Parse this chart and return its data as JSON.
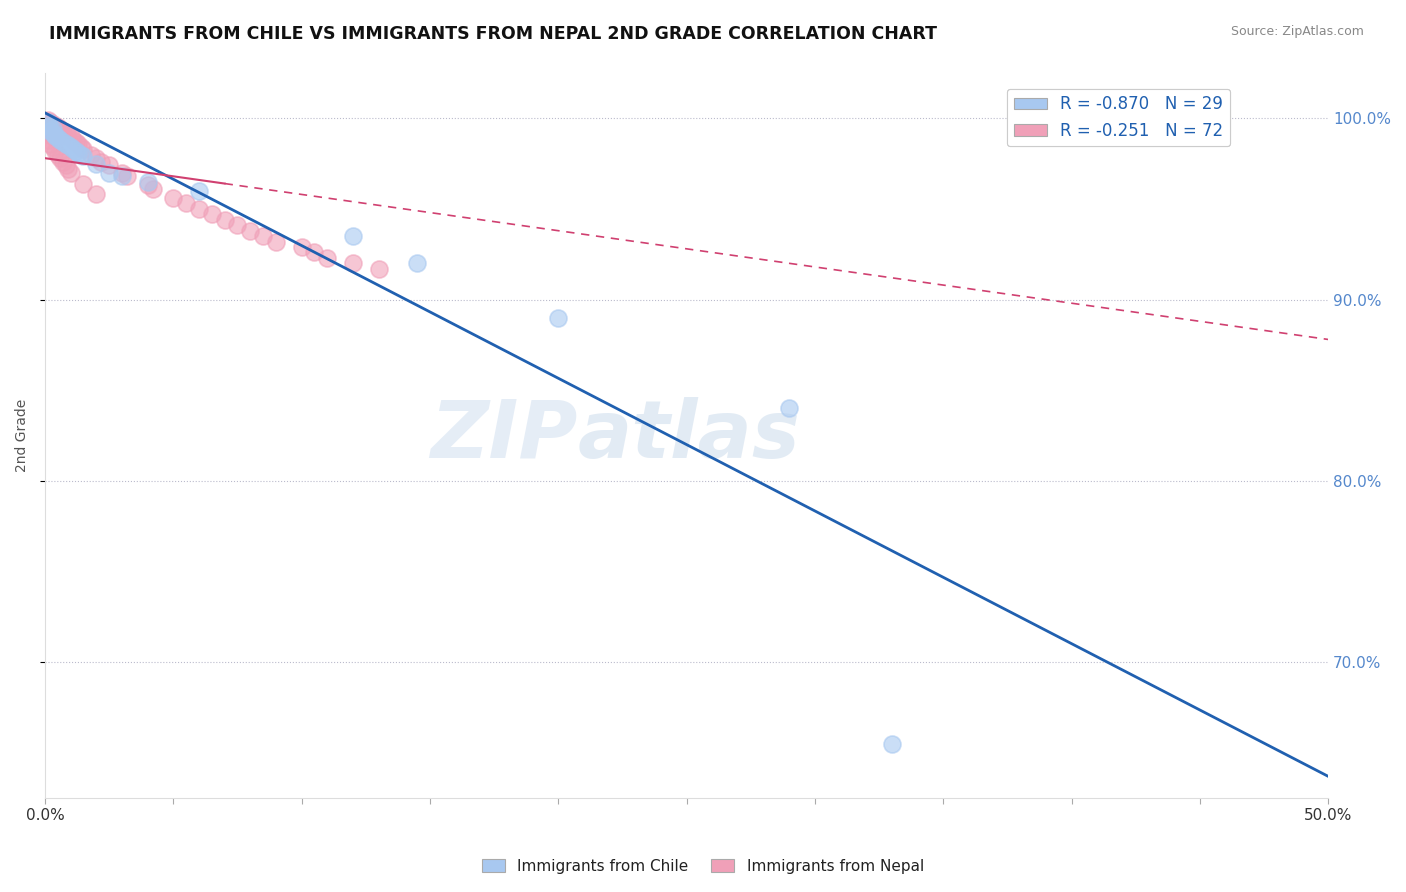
{
  "title": "IMMIGRANTS FROM CHILE VS IMMIGRANTS FROM NEPAL 2ND GRADE CORRELATION CHART",
  "source": "Source: ZipAtlas.com",
  "ylabel": "2nd Grade",
  "ytick_labels": [
    "100.0%",
    "90.0%",
    "80.0%",
    "70.0%"
  ],
  "ytick_values": [
    1.0,
    0.9,
    0.8,
    0.7
  ],
  "xlim": [
    0.0,
    0.5
  ],
  "ylim": [
    0.625,
    1.025
  ],
  "chile_R": -0.87,
  "chile_N": 29,
  "nepal_R": -0.251,
  "nepal_N": 72,
  "chile_color": "#a8c8f0",
  "nepal_color": "#f0a0b8",
  "chile_line_color": "#2060b0",
  "nepal_line_color": "#d04070",
  "chile_line_x0": 0.0,
  "chile_line_y0": 1.003,
  "chile_line_x1": 0.5,
  "chile_line_y1": 0.637,
  "nepal_line_x0": 0.0,
  "nepal_line_y0": 0.978,
  "nepal_line_x1": 0.5,
  "nepal_line_y1": 0.878,
  "watermark_zip": "ZIP",
  "watermark_atlas": "atlas",
  "background_color": "#ffffff",
  "chile_scatter_x": [
    0.001,
    0.001,
    0.002,
    0.002,
    0.003,
    0.003,
    0.004,
    0.004,
    0.005,
    0.006,
    0.007,
    0.008,
    0.009,
    0.01,
    0.011,
    0.012,
    0.013,
    0.014,
    0.015,
    0.02,
    0.025,
    0.03,
    0.04,
    0.06,
    0.12,
    0.145,
    0.2,
    0.29,
    0.33
  ],
  "chile_scatter_y": [
    0.998,
    0.996,
    0.995,
    0.993,
    0.994,
    0.992,
    0.991,
    0.99,
    0.989,
    0.988,
    0.987,
    0.986,
    0.985,
    0.984,
    0.983,
    0.982,
    0.981,
    0.98,
    0.979,
    0.975,
    0.97,
    0.968,
    0.965,
    0.96,
    0.935,
    0.92,
    0.89,
    0.84,
    0.655
  ],
  "nepal_scatter_x": [
    0.001,
    0.001,
    0.001,
    0.001,
    0.001,
    0.001,
    0.001,
    0.001,
    0.002,
    0.002,
    0.002,
    0.002,
    0.002,
    0.002,
    0.003,
    0.003,
    0.003,
    0.003,
    0.003,
    0.004,
    0.004,
    0.004,
    0.004,
    0.005,
    0.005,
    0.005,
    0.006,
    0.006,
    0.007,
    0.007,
    0.008,
    0.009,
    0.01,
    0.011,
    0.012,
    0.013,
    0.014,
    0.015,
    0.018,
    0.02,
    0.022,
    0.025,
    0.03,
    0.032,
    0.04,
    0.042,
    0.05,
    0.055,
    0.06,
    0.065,
    0.07,
    0.075,
    0.08,
    0.085,
    0.09,
    0.1,
    0.105,
    0.11,
    0.12,
    0.13,
    0.001,
    0.002,
    0.003,
    0.004,
    0.005,
    0.006,
    0.007,
    0.008,
    0.009,
    0.01,
    0.015,
    0.02
  ],
  "nepal_scatter_y": [
    0.999,
    0.998,
    0.997,
    0.996,
    0.995,
    0.994,
    0.993,
    0.992,
    0.998,
    0.997,
    0.996,
    0.994,
    0.993,
    0.991,
    0.997,
    0.996,
    0.994,
    0.993,
    0.99,
    0.996,
    0.994,
    0.993,
    0.99,
    0.995,
    0.993,
    0.991,
    0.994,
    0.992,
    0.993,
    0.99,
    0.992,
    0.991,
    0.99,
    0.988,
    0.987,
    0.986,
    0.984,
    0.983,
    0.98,
    0.978,
    0.976,
    0.974,
    0.97,
    0.968,
    0.963,
    0.961,
    0.956,
    0.953,
    0.95,
    0.947,
    0.944,
    0.941,
    0.938,
    0.935,
    0.932,
    0.929,
    0.926,
    0.923,
    0.92,
    0.917,
    0.988,
    0.986,
    0.984,
    0.982,
    0.98,
    0.978,
    0.976,
    0.974,
    0.972,
    0.97,
    0.964,
    0.958
  ]
}
